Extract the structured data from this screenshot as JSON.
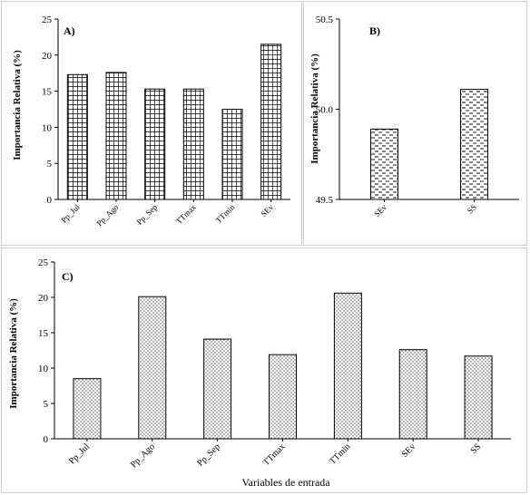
{
  "figure": {
    "colors": {
      "bar_stroke": "#000000",
      "frame": "#cfcfcf",
      "background": "#ffffff"
    }
  },
  "chart_data": [
    {
      "id": "A",
      "type": "bar",
      "panel_label": "A)",
      "categories": [
        "Pp_Jul",
        "Pp_Ago",
        "Pp_Sep",
        "TTmax",
        "TTmin",
        "SEv"
      ],
      "values": [
        17.3,
        17.6,
        15.3,
        15.3,
        12.5,
        21.5
      ],
      "ylabel": "Importancia Relativa (%)",
      "xlabel": "",
      "ylim": [
        0,
        25
      ],
      "yticks": [
        0,
        5,
        10,
        15,
        20,
        25
      ],
      "pattern": "grid",
      "grid": false
    },
    {
      "id": "B",
      "type": "bar",
      "panel_label": "B)",
      "categories": [
        "SEv",
        "SS"
      ],
      "values": [
        49.89,
        50.11
      ],
      "ylabel": "Importancia Relativa (%)",
      "xlabel": "",
      "ylim": [
        49.5,
        50.5
      ],
      "yticks": [
        49.5,
        50.0,
        50.5
      ],
      "ytick_labels": [
        "49.5",
        "50.0",
        "50.5"
      ],
      "pattern": "dash",
      "grid": false
    },
    {
      "id": "C",
      "type": "bar",
      "panel_label": "C)",
      "categories": [
        "Pp_Jul",
        "Pp_Ago",
        "Pp_Sep",
        "TTmax",
        "TTmin",
        "SEv",
        "SS"
      ],
      "values": [
        8.5,
        20.1,
        14.1,
        11.9,
        20.6,
        12.6,
        11.7
      ],
      "ylabel": "Importancia Relativa (%)",
      "xlabel": "Variables de entrada",
      "ylim": [
        0,
        25
      ],
      "yticks": [
        0,
        5,
        10,
        15,
        20,
        25
      ],
      "pattern": "dot",
      "grid": false
    }
  ]
}
